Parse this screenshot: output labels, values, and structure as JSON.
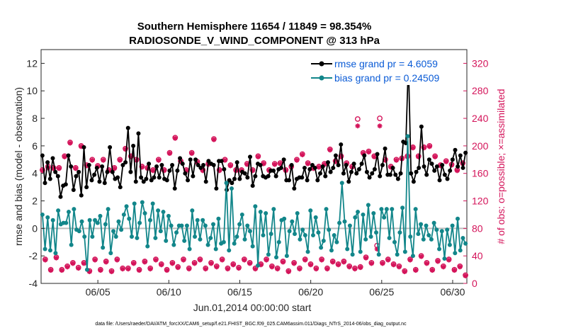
{
  "chart_data": {
    "type": "line",
    "title_line1": "Southern Hemisphere 11654 / 11849 = 98.354%",
    "title_line2": "RADIOSONDE_V_WIND_COMPONENT @ 313 hPa",
    "xlabel": "Jun.01,2014 00:00:00 start",
    "ylabel": "rmse and bias (model - observation)",
    "ylabel_right": "# of obs: o=possible; ×=assimilated",
    "x_tick_labels": [
      "06/05",
      "06/10",
      "06/15",
      "06/20",
      "06/25",
      "06/30"
    ],
    "x_tick_values": [
      5,
      10,
      15,
      20,
      25,
      30
    ],
    "xlim": [
      1,
      31
    ],
    "ylim": [
      -4,
      13
    ],
    "y_ticks": [
      -4,
      -2,
      0,
      2,
      4,
      6,
      8,
      10,
      12
    ],
    "y_tick_labels": [
      "-4",
      "-2",
      "0",
      "2",
      "4",
      "6",
      "8",
      "10",
      "12"
    ],
    "y2lim": [
      0,
      340
    ],
    "y2_ticks": [
      0,
      40,
      80,
      120,
      160,
      200,
      240,
      280,
      320
    ],
    "y2_tick_labels": [
      "0",
      "40",
      "80",
      "120",
      "160",
      "200",
      "240",
      "280",
      "320"
    ],
    "series": [
      {
        "name": "rmse",
        "legend": "rmse grand pr = 4.6059",
        "color": "#000000",
        "marker_color": "#000000",
        "axis": "left",
        "values": [
          5.3,
          3.3,
          4.8,
          3.6,
          5.1,
          4.1,
          3.8,
          2.3,
          3.1,
          3.2,
          5.3,
          4.5,
          2.8,
          3.8,
          4.1,
          2.4,
          5.9,
          3.0,
          4.6,
          3.5,
          3.9,
          4.4,
          3.4,
          4.5,
          3.3,
          4.1,
          5.9,
          4.1,
          3.6,
          3.7,
          3.0,
          4.6,
          4.8,
          7.3,
          4.1,
          6.0,
          3.4,
          6.9,
          3.7,
          3.4,
          3.6,
          4.7,
          3.5,
          3.7,
          4.5,
          3.7,
          4.6,
          3.6,
          3.5,
          4.2,
          4.6,
          2.9,
          4.2,
          5.1,
          4.7,
          4.0,
          3.5,
          5.0,
          3.8,
          5.0,
          4.6,
          4.4,
          4.6,
          3.4,
          4.9,
          4.7,
          4.6,
          2.9,
          4.9,
          4.9,
          4.3,
          2.8,
          3.5,
          3.3,
          3.6,
          4.8,
          3.6,
          4.1,
          4.0,
          3.7,
          5.2,
          3.1,
          3.8,
          4.7,
          4.6,
          3.8,
          3.7,
          3.8,
          4.2,
          4.2,
          3.8,
          4.3,
          4.4,
          5.0,
          3.5,
          3.5,
          4.6,
          2.9,
          3.6,
          3.7,
          3.7,
          4.4,
          3.5,
          4.3,
          4.6,
          4.4,
          3.5,
          4.0,
          4.5,
          3.8,
          4.8,
          4.1,
          4.4,
          5.3,
          4.6,
          6.1,
          4.0,
          4.6,
          3.4,
          4.1,
          4.7,
          4.0,
          4.3,
          4.7,
          5.3,
          4.1,
          3.7,
          4.0,
          4.3,
          5.4,
          3.8,
          4.6,
          5.8,
          3.9,
          3.9,
          4.4,
          3.9,
          3.6,
          4.0,
          6.3,
          6.2,
          12.1,
          4.0,
          3.4,
          4.1,
          4.4,
          7.4,
          4.5,
          3.9,
          5.0,
          4.7,
          4.2,
          4.5,
          3.5,
          4.6,
          3.9,
          3.6,
          4.2,
          5.0,
          5.7,
          4.5,
          5.3,
          4.4,
          5.5
        ]
      },
      {
        "name": "bias",
        "legend": "bias grand pr = 0.24509",
        "color": "#12868a",
        "marker_color": "#12868a",
        "axis": "left",
        "values": [
          1.0,
          -1.5,
          0.8,
          -1.6,
          0.6,
          -1.8,
          1.3,
          0.3,
          0.4,
          0.4,
          1.2,
          -1.2,
          1.4,
          -0.1,
          -0.2,
          0.5,
          -0.6,
          -3.0,
          0.6,
          -0.6,
          0.6,
          0.4,
          0.9,
          -1.4,
          0.3,
          1.4,
          -1.8,
          -0.2,
          -0.6,
          0.5,
          -0.1,
          1.0,
          1.6,
          0.7,
          -0.6,
          1.8,
          -0.7,
          0.4,
          1.9,
          1.1,
          -1.3,
          0.6,
          1.8,
          -0.7,
          1.3,
          -0.2,
          1.2,
          -0.9,
          0.9,
          0.2,
          -1.2,
          -0.3,
          0.2,
          0.2,
          -0.9,
          0.2,
          -1.5,
          1.3,
          -0.6,
          0.6,
          -0.8,
          0.6,
          0.2,
          -1.2,
          -0.7,
          0.3,
          -1.5,
          0.7,
          -1.1,
          -1.0,
          3.3,
          -1.6,
          2.9,
          -1.1,
          -0.6,
          0.3,
          1.0,
          -0.8,
          0.2,
          -0.2,
          -1.3,
          1.6,
          -2.7,
          1.2,
          -0.5,
          1.1,
          -1.9,
          -0.4,
          1.4,
          -2.1,
          -1.0,
          0.6,
          0.7,
          -2.0,
          -0.2,
          0.5,
          -0.4,
          1.1,
          -0.8,
          -0.1,
          -0.5,
          -1.7,
          1.3,
          -0.5,
          0.8,
          -0.3,
          -1.4,
          -0.9,
          1.4,
          -0.1,
          -1.6,
          -0.5,
          -1.0,
          0.4,
          3.3,
          0.5,
          -1.5,
          0.2,
          -1.9,
          0.8,
          1.2,
          -1.7,
          1.0,
          -0.8,
          1.7,
          -0.6,
          1.1,
          -0.3,
          -1.9,
          1.4,
          0.8,
          1.4,
          -0.7,
          1.4,
          -1.0,
          -1.9,
          -0.3,
          1.5,
          -1.7,
          6.7,
          -0.6,
          -2.0,
          1.4,
          -0.4,
          0.3,
          -0.8,
          0.2,
          -0.5,
          -0.8,
          0.4,
          -0.1,
          -1.5,
          -0.2,
          -2.2,
          -0.1,
          -1.2,
          0.2,
          -1.8,
          0.7,
          -1.6,
          -0.7,
          -1.1
        ]
      },
      {
        "name": "obs possible",
        "marker": "o",
        "color": "#d4145a",
        "axis": "right",
        "values": [
          165,
          35,
          170,
          20,
          168,
          38,
          168,
          20,
          185,
          25,
          205,
          30,
          168,
          23,
          200,
          30,
          172,
          18,
          180,
          35,
          171,
          20,
          180,
          32,
          165,
          18,
          168,
          35,
          180,
          22,
          196,
          22,
          185,
          30,
          180,
          20,
          170,
          32,
          168,
          22,
          165,
          35,
          180,
          28,
          165,
          20,
          190,
          30,
          212,
          24,
          178,
          35,
          165,
          22,
          190,
          30,
          177,
          35,
          165,
          22,
          174,
          30,
          210,
          25,
          165,
          35,
          180,
          22,
          172,
          28,
          165,
          23,
          165,
          35,
          174,
          30,
          165,
          22,
          185,
          28,
          175,
          35,
          165,
          25,
          174,
          22,
          175,
          32,
          165,
          18,
          170,
          30,
          180,
          22,
          188,
          35,
          175,
          28,
          168,
          22,
          170,
          35,
          174,
          22,
          195,
          32,
          178,
          28,
          185,
          32,
          175,
          25,
          170,
          22,
          239,
          24,
          190,
          38,
          192,
          30,
          185,
          55,
          240,
          30,
          180,
          35,
          170,
          28,
          180,
          25,
          182,
          18,
          185,
          35,
          198,
          20,
          185,
          40,
          198,
          30,
          200,
          20,
          185,
          33,
          172,
          25,
          178,
          35,
          173,
          20,
          165,
          25,
          175,
          12
        ]
      },
      {
        "name": "obs assimilated",
        "marker": "*",
        "color": "#d4145a",
        "axis": "right",
        "values": [
          164,
          34,
          168,
          19,
          167,
          37,
          167,
          19,
          184,
          24,
          204,
          29,
          167,
          22,
          199,
          29,
          171,
          17,
          179,
          34,
          170,
          19,
          179,
          31,
          164,
          17,
          167,
          34,
          179,
          21,
          195,
          21,
          184,
          29,
          179,
          19,
          169,
          31,
          167,
          21,
          164,
          34,
          179,
          27,
          164,
          19,
          189,
          29,
          211,
          23,
          177,
          34,
          164,
          21,
          189,
          29,
          176,
          34,
          164,
          21,
          173,
          29,
          209,
          24,
          164,
          34,
          179,
          21,
          171,
          27,
          164,
          22,
          164,
          34,
          173,
          29,
          164,
          21,
          184,
          27,
          174,
          34,
          164,
          24,
          173,
          21,
          174,
          31,
          164,
          17,
          169,
          29,
          179,
          21,
          187,
          34,
          174,
          27,
          167,
          21,
          169,
          34,
          173,
          21,
          194,
          31,
          177,
          27,
          184,
          31,
          174,
          24,
          169,
          21,
          229,
          23,
          189,
          37,
          191,
          29,
          184,
          50,
          229,
          29,
          179,
          34,
          169,
          27,
          179,
          24,
          181,
          17,
          184,
          34,
          197,
          19,
          184,
          39,
          197,
          29,
          199,
          19,
          184,
          32,
          171,
          24,
          177,
          34,
          172,
          19,
          164,
          24,
          174,
          11
        ]
      }
    ]
  },
  "footer": "data file: /Users/raeder/DAI/ATM_forcXX/CAM6_setup/f.e21.FHIST_BGC.f09_025.CAM6assim.011/Diags_NTrS_2014-06/obs_diag_output.nc"
}
